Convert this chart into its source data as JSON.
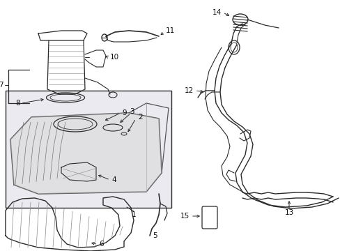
{
  "bg_color": "#ffffff",
  "line_color": "#2a2a2a",
  "box_bg": "#eaeaf0",
  "label_color": "#111111",
  "fs": 7.5,
  "fig_w": 4.89,
  "fig_h": 3.6
}
